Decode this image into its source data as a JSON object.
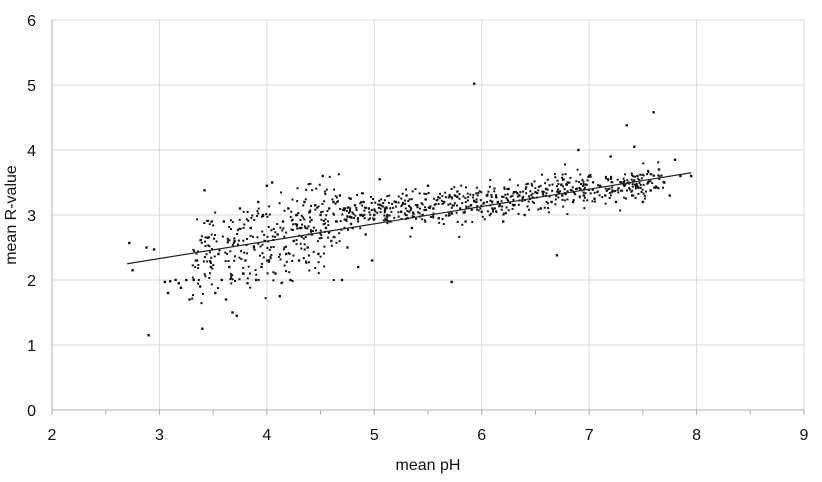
{
  "chart_data": {
    "type": "scatter",
    "title": "",
    "xlabel": "mean pH",
    "ylabel": "mean R-value",
    "xlim": [
      2,
      9
    ],
    "ylim": [
      0,
      6
    ],
    "x_ticks": [
      "2",
      "3",
      "4",
      "5",
      "6",
      "7",
      "8",
      "9"
    ],
    "y_ticks": [
      "0",
      "1",
      "2",
      "3",
      "4",
      "5",
      "6"
    ],
    "grid": true,
    "legend": "none",
    "colors": {
      "points": "#111111",
      "trendline": "#222222",
      "grid": "#d9d9d9",
      "axis": "#b0b0b0"
    },
    "trendline": {
      "x": [
        2.7,
        7.95
      ],
      "y": [
        2.25,
        3.65
      ]
    },
    "points_note": "approx. 1000 points sampled from dense cloud",
    "series": [
      {
        "points": [
          [
            2.72,
            2.57
          ],
          [
            2.75,
            2.15
          ],
          [
            2.88,
            2.5
          ],
          [
            2.9,
            1.15
          ],
          [
            2.95,
            2.47
          ],
          [
            3.05,
            1.97
          ],
          [
            3.08,
            1.8
          ],
          [
            3.1,
            1.98
          ],
          [
            3.15,
            2.0
          ],
          [
            3.18,
            1.95
          ],
          [
            3.2,
            1.88
          ],
          [
            3.25,
            2.0
          ],
          [
            3.28,
            1.7
          ],
          [
            3.32,
            2.0
          ],
          [
            3.35,
            2.3
          ],
          [
            3.38,
            1.9
          ],
          [
            3.4,
            1.25
          ],
          [
            3.42,
            3.38
          ],
          [
            3.45,
            2.65
          ],
          [
            3.48,
            2.2
          ],
          [
            3.52,
            1.8
          ],
          [
            3.55,
            2.4
          ],
          [
            3.58,
            2.0
          ],
          [
            3.6,
            2.9
          ],
          [
            3.62,
            1.7
          ],
          [
            3.65,
            2.2
          ],
          [
            3.68,
            1.5
          ],
          [
            3.7,
            2.6
          ],
          [
            3.72,
            1.45
          ],
          [
            3.75,
            3.1
          ],
          [
            3.78,
            2.1
          ],
          [
            3.8,
            2.3
          ],
          [
            3.82,
            1.95
          ],
          [
            3.85,
            2.8
          ],
          [
            3.88,
            2.5
          ],
          [
            3.9,
            2.0
          ],
          [
            3.92,
            3.2
          ],
          [
            3.95,
            2.2
          ],
          [
            3.98,
            2.6
          ],
          [
            4.0,
            3.45
          ],
          [
            4.02,
            2.3
          ],
          [
            4.05,
            3.5
          ],
          [
            4.08,
            2.1
          ],
          [
            4.1,
            2.7
          ],
          [
            4.12,
            1.75
          ],
          [
            4.15,
            2.9
          ],
          [
            4.18,
            2.4
          ],
          [
            4.2,
            3.1
          ],
          [
            4.22,
            2.0
          ],
          [
            4.25,
            2.6
          ],
          [
            4.28,
            3.0
          ],
          [
            4.3,
            2.3
          ],
          [
            4.32,
            2.8
          ],
          [
            4.35,
            3.2
          ],
          [
            4.38,
            2.5
          ],
          [
            4.4,
            3.05
          ],
          [
            4.42,
            2.7
          ],
          [
            4.45,
            3.15
          ],
          [
            4.48,
            2.4
          ],
          [
            4.5,
            3.0
          ],
          [
            4.52,
            3.6
          ],
          [
            4.55,
            2.8
          ],
          [
            4.58,
            3.1
          ],
          [
            4.6,
            2.6
          ],
          [
            4.62,
            3.2
          ],
          [
            4.65,
            2.9
          ],
          [
            4.68,
            3.3
          ],
          [
            4.7,
            2.0
          ],
          [
            4.72,
            3.1
          ],
          [
            4.75,
            2.5
          ],
          [
            4.78,
            3.25
          ],
          [
            4.8,
            2.8
          ],
          [
            4.82,
            3.15
          ],
          [
            4.85,
            2.2
          ],
          [
            4.88,
            3.0
          ],
          [
            4.9,
            3.2
          ],
          [
            4.92,
            2.7
          ],
          [
            4.95,
            3.1
          ],
          [
            4.98,
            2.3
          ],
          [
            5.0,
            3.0
          ],
          [
            5.05,
            3.55
          ],
          [
            5.1,
            3.1
          ],
          [
            5.15,
            2.9
          ],
          [
            5.2,
            3.2
          ],
          [
            5.25,
            3.05
          ],
          [
            5.3,
            3.3
          ],
          [
            5.35,
            2.8
          ],
          [
            5.4,
            3.15
          ],
          [
            5.45,
            3.0
          ],
          [
            5.5,
            3.45
          ],
          [
            5.55,
            3.1
          ],
          [
            5.6,
            2.95
          ],
          [
            5.65,
            3.2
          ],
          [
            5.7,
            3.0
          ],
          [
            5.72,
            1.97
          ],
          [
            5.75,
            3.3
          ],
          [
            5.8,
            3.1
          ],
          [
            5.85,
            2.9
          ],
          [
            5.9,
            3.15
          ],
          [
            5.93,
            5.02
          ],
          [
            5.95,
            3.2
          ],
          [
            6.0,
            3.05
          ],
          [
            6.05,
            3.3
          ],
          [
            6.1,
            3.1
          ],
          [
            6.15,
            3.2
          ],
          [
            6.2,
            2.9
          ],
          [
            6.25,
            3.4
          ],
          [
            6.3,
            3.15
          ],
          [
            6.35,
            3.3
          ],
          [
            6.4,
            3.0
          ],
          [
            6.45,
            3.25
          ],
          [
            6.5,
            3.35
          ],
          [
            6.55,
            3.1
          ],
          [
            6.6,
            3.4
          ],
          [
            6.65,
            3.2
          ],
          [
            6.7,
            2.38
          ],
          [
            6.75,
            3.3
          ],
          [
            6.8,
            3.5
          ],
          [
            6.85,
            3.2
          ],
          [
            6.9,
            4.0
          ],
          [
            6.95,
            3.3
          ],
          [
            7.0,
            3.6
          ],
          [
            7.05,
            3.25
          ],
          [
            7.1,
            3.45
          ],
          [
            7.15,
            3.3
          ],
          [
            7.2,
            3.9
          ],
          [
            7.25,
            3.2
          ],
          [
            7.3,
            3.5
          ],
          [
            7.35,
            4.38
          ],
          [
            7.4,
            3.3
          ],
          [
            7.42,
            4.05
          ],
          [
            7.45,
            3.6
          ],
          [
            7.5,
            3.2
          ],
          [
            7.55,
            3.5
          ],
          [
            7.6,
            4.58
          ],
          [
            7.65,
            3.7
          ],
          [
            7.7,
            3.5
          ],
          [
            7.75,
            3.3
          ],
          [
            7.8,
            3.85
          ],
          [
            7.85,
            3.6
          ],
          [
            7.95,
            3.6
          ]
        ]
      }
    ]
  }
}
